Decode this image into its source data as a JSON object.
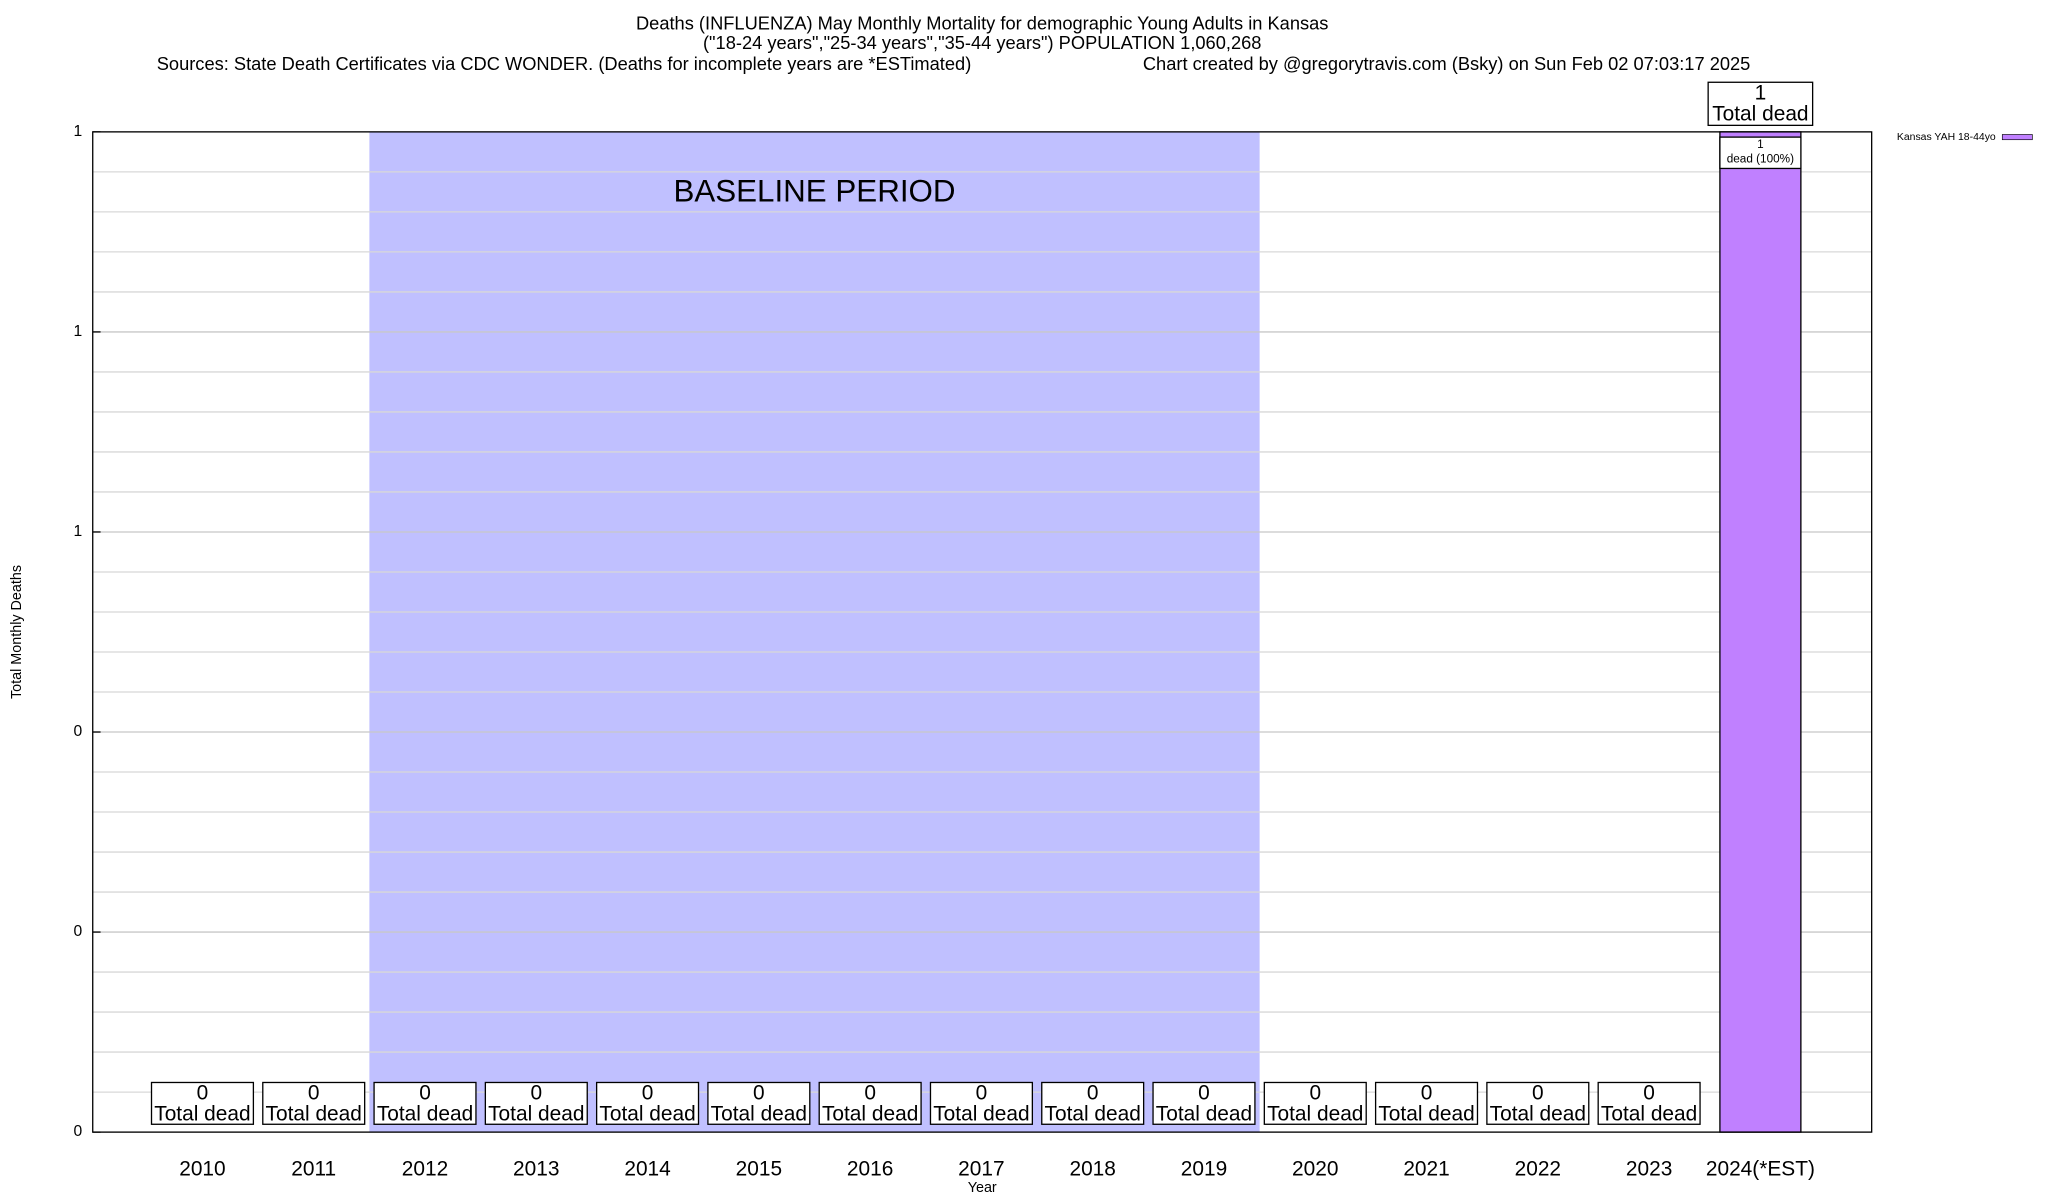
{
  "chart_data": {
    "type": "bar",
    "title": "Deaths (INFLUENZA) May Monthly Mortality for demographic Young Adults in Kansas",
    "subtitle": "(\"18-24 years\",\"25-34 years\",\"35-44 years\") POPULATION 1,060,268",
    "source": "Sources: State Death Certificates via CDC WONDER. (Deaths for incomplete years are *ESTimated)",
    "credit": "Chart created by @gregorytravis.com (Bsky) on Sun Feb 02 07:03:17 2025",
    "x_label": "Year",
    "y_label": "Total Monthly Deaths",
    "categories": [
      "2010",
      "2011",
      "2012",
      "2013",
      "2014",
      "2015",
      "2016",
      "2017",
      "2018",
      "2019",
      "2020",
      "2021",
      "2022",
      "2023",
      "2024(*EST)"
    ],
    "series": [
      {
        "name": "Kansas YAH 18-44yo",
        "color": "#c080ff",
        "values": [
          0,
          0,
          0,
          0,
          0,
          0,
          0,
          0,
          0,
          0,
          0,
          0,
          0,
          0,
          1
        ]
      }
    ],
    "total_label": "Total dead",
    "share_label": "dead (100%)",
    "baseline": {
      "label": "BASELINE PERIOD",
      "color": "#c0c0ff",
      "from": "2012",
      "to": "2019"
    },
    "ylim": [
      0,
      1
    ],
    "yticks": [
      0,
      {
        "value": 0.2,
        "label": "0"
      },
      {
        "value": 0.4,
        "label": "0"
      },
      {
        "value": 0.6,
        "label": "1"
      },
      {
        "value": 0.8,
        "label": "1"
      },
      1
    ],
    "grid": true,
    "legend": "top-right"
  }
}
